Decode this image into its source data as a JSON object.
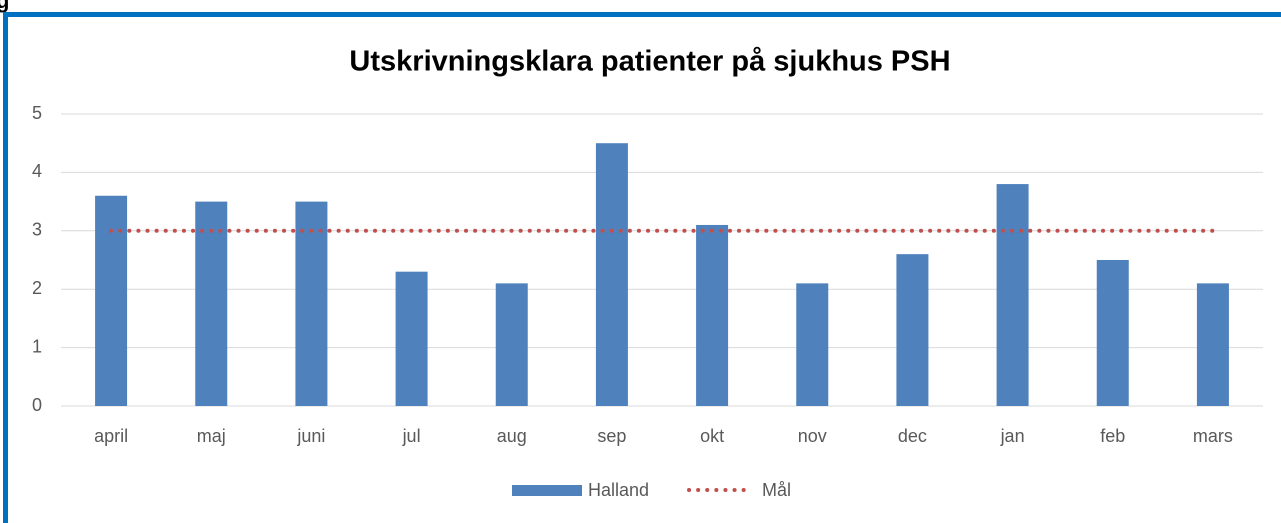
{
  "header_fragment": "g",
  "chart_data": {
    "type": "bar",
    "title": "Utskrivningsklara patienter på sjukhus PSH",
    "categories": [
      "april",
      "maj",
      "juni",
      "jul",
      "aug",
      "sep",
      "okt",
      "nov",
      "dec",
      "jan",
      "feb",
      "mars"
    ],
    "series": [
      {
        "name": "Halland",
        "type": "bar",
        "color": "#4f81bd",
        "values": [
          3.6,
          3.5,
          3.5,
          2.3,
          2.1,
          4.5,
          3.1,
          2.1,
          2.6,
          3.8,
          2.5,
          2.1
        ]
      },
      {
        "name": "Mål",
        "type": "line",
        "color": "#c0504d",
        "values": [
          3,
          3,
          3,
          3,
          3,
          3,
          3,
          3,
          3,
          3,
          3,
          3
        ]
      }
    ],
    "ylim": [
      0,
      5
    ],
    "yticks": [
      0,
      1,
      2,
      3,
      4,
      5
    ],
    "grid": true,
    "legend": "bottom"
  }
}
